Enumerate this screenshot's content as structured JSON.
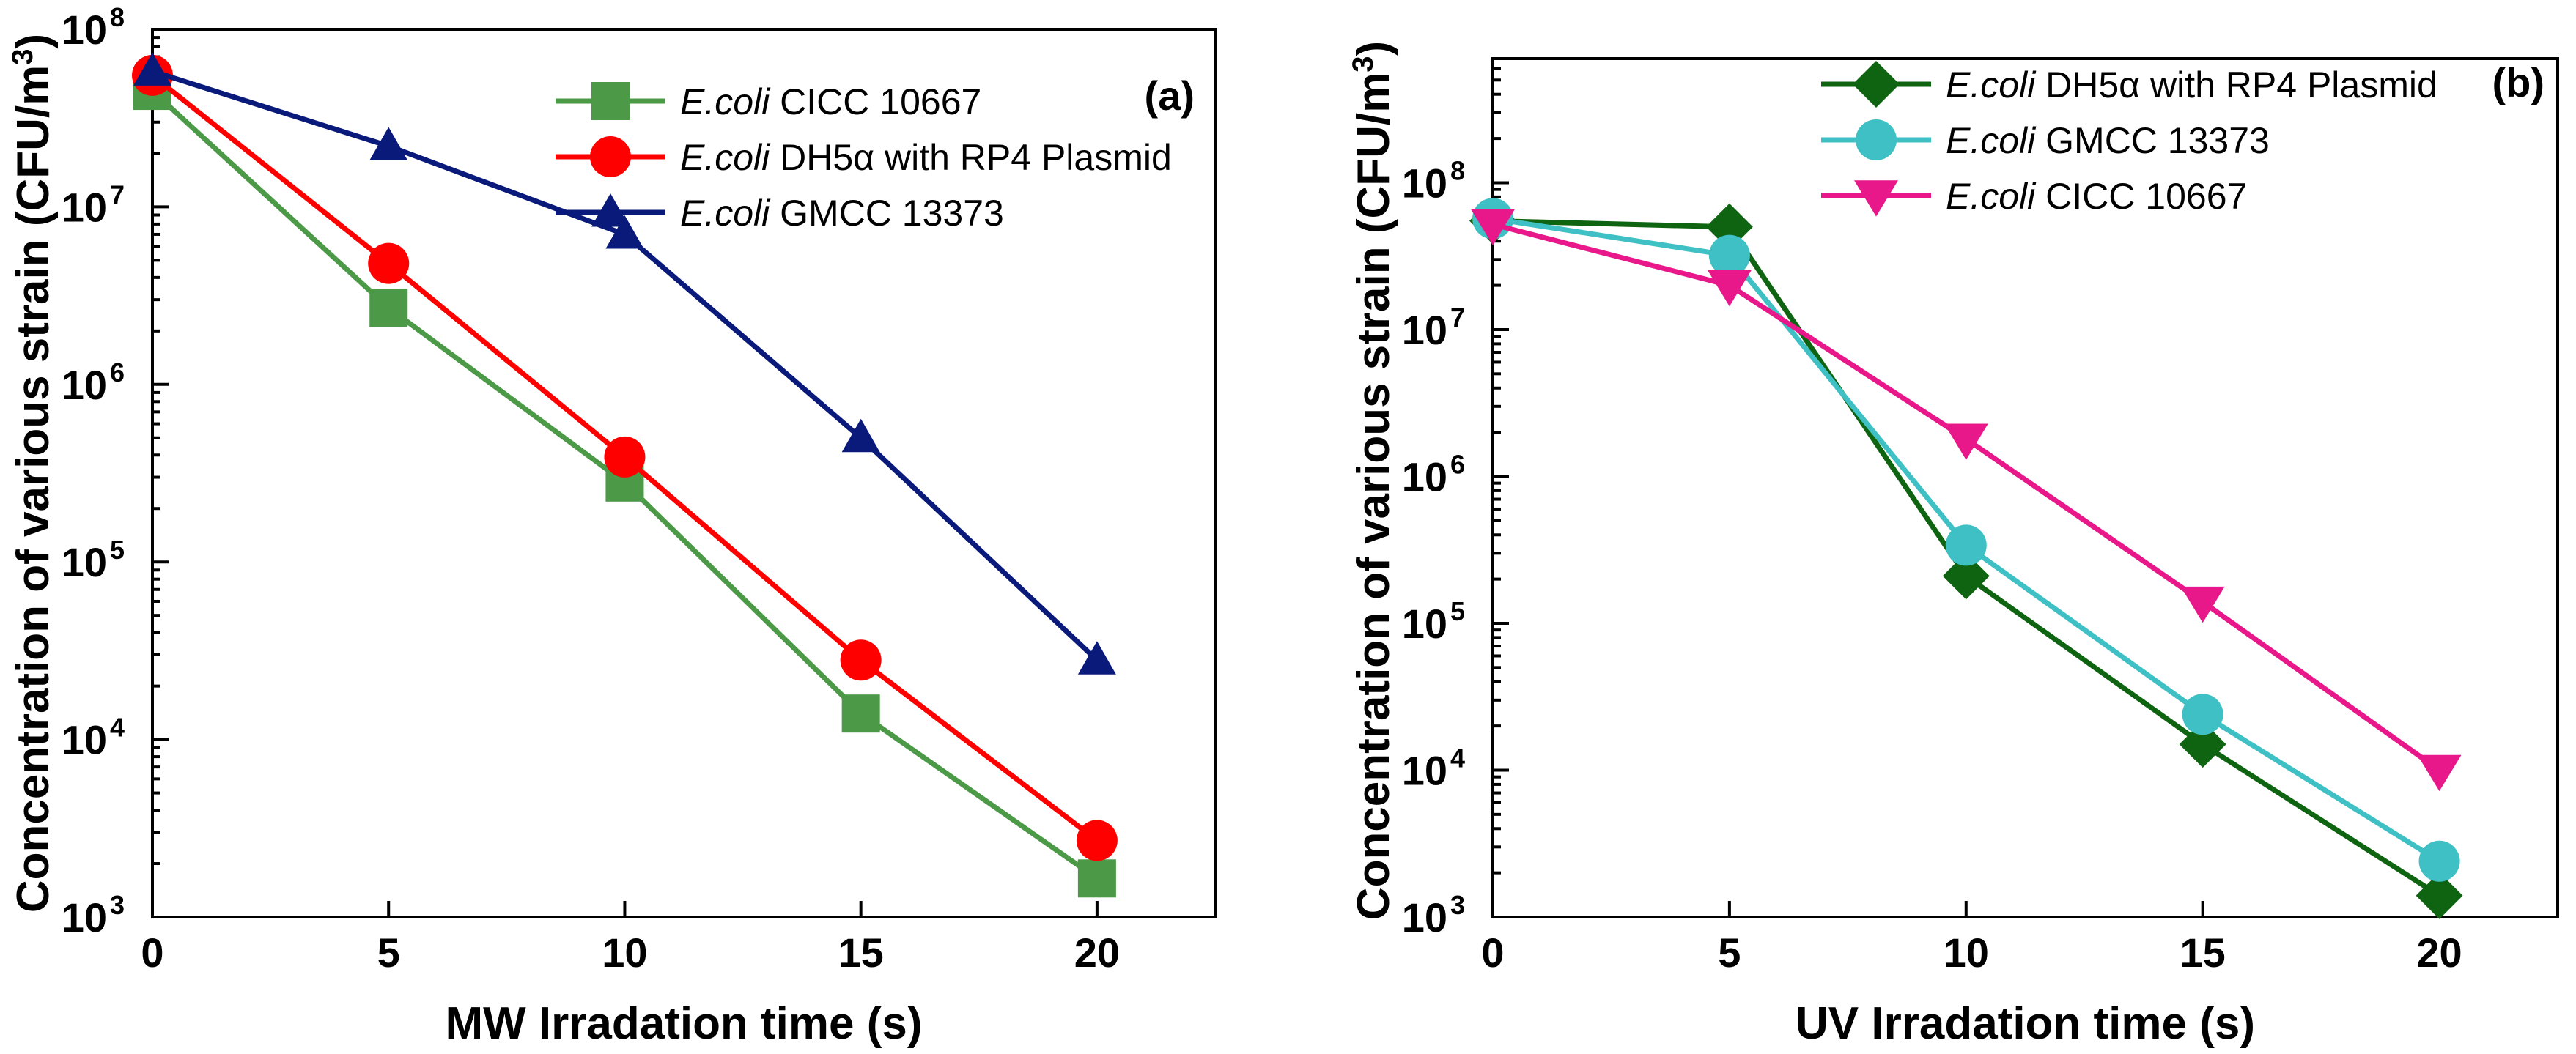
{
  "chart_data": [
    {
      "type": "line",
      "panel_label": "(a)",
      "xlabel": "MW Irradation time (s)",
      "ylabel": "Concentration of various strain (CFU/m",
      "ylabel_sup": "3",
      "ylabel_close": ")",
      "yscale": "log",
      "ylim": [
        1000,
        100000000
      ],
      "xlim": [
        0,
        22.5
      ],
      "x_ticks": [
        "0",
        "5",
        "10",
        "15",
        "20"
      ],
      "y_ticks": [
        {
          "base": "10",
          "exp": "3"
        },
        {
          "base": "10",
          "exp": "4"
        },
        {
          "base": "10",
          "exp": "5"
        },
        {
          "base": "10",
          "exp": "6"
        },
        {
          "base": "10",
          "exp": "7"
        },
        {
          "base": "10",
          "exp": "8"
        }
      ],
      "legend_position": "top-right",
      "series": [
        {
          "name_italic": "E.coli",
          "name_rest": " CICC 10667",
          "color": "#4c9a47",
          "marker": "square",
          "x": [
            0,
            5,
            10,
            15,
            20
          ],
          "values": [
            45000000,
            2700000,
            280000,
            14000,
            1650
          ]
        },
        {
          "name_italic": "E.coli",
          "name_rest": " DH5α with RP4 Plasmid",
          "color": "#ff0000",
          "marker": "circle",
          "x": [
            0,
            5,
            10,
            15,
            20
          ],
          "values": [
            55000000,
            4800000,
            390000,
            28000,
            2700
          ]
        },
        {
          "name_italic": "E.coli",
          "name_rest": " GMCC 13373",
          "color": "#0a1a7a",
          "marker": "triangle-up",
          "x": [
            0,
            5,
            10,
            15,
            20
          ],
          "values": [
            58000000,
            22000000,
            7000000,
            500000,
            28000
          ]
        }
      ]
    },
    {
      "type": "line",
      "panel_label": "(b)",
      "xlabel": "UV Irradation time (s)",
      "ylabel": "Concentration of various strain (CFU/m",
      "ylabel_sup": "3",
      "ylabel_close": ")",
      "yscale": "log",
      "ylim": [
        1000,
        700000000
      ],
      "xlim": [
        0,
        22.5
      ],
      "x_ticks": [
        "0",
        "5",
        "10",
        "15",
        "20"
      ],
      "y_ticks": [
        {
          "base": "10",
          "exp": "3"
        },
        {
          "base": "10",
          "exp": "4"
        },
        {
          "base": "10",
          "exp": "5"
        },
        {
          "base": "10",
          "exp": "6"
        },
        {
          "base": "10",
          "exp": "7"
        },
        {
          "base": "10",
          "exp": "8"
        }
      ],
      "legend_position": "top-right",
      "series": [
        {
          "name_italic": "E.coli",
          "name_rest": " DH5α with RP4 Plasmid",
          "color": "#0e6410",
          "marker": "diamond",
          "x": [
            0,
            5,
            10,
            15,
            20
          ],
          "values": [
            55000000,
            50000000,
            210000,
            15000,
            1400
          ]
        },
        {
          "name_italic": "E.coli",
          "name_rest": " GMCC 13373",
          "color": "#3fc0c4",
          "marker": "circle",
          "x": [
            0,
            5,
            10,
            15,
            20
          ],
          "values": [
            57000000,
            32000000,
            340000,
            24000,
            2400
          ]
        },
        {
          "name_italic": "E.coli",
          "name_rest": " CICC 10667",
          "color": "#e8178a",
          "marker": "triangle-down",
          "x": [
            0,
            5,
            10,
            15,
            20
          ],
          "values": [
            52000000,
            20000000,
            1800000,
            140000,
            10000
          ]
        }
      ]
    }
  ]
}
